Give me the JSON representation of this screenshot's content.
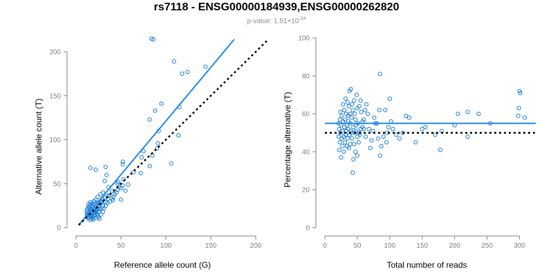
{
  "title": "rs7118 - ENSG00000184939,ENSG00000262820",
  "subtitle_prefix": "p-value: 1.51×10",
  "subtitle_exp": "-24",
  "colors": {
    "points": "#1f7fd6",
    "fit": "#1e88e5",
    "reference": "#000000",
    "axis": "#7f7f7f"
  },
  "chart_data": [
    {
      "type": "scatter",
      "title": "",
      "xlabel": "Reference allele count (G)",
      "ylabel": "Alternative allele count (T)",
      "xlim": [
        0,
        200
      ],
      "ylim": [
        0,
        200
      ],
      "xticks": [
        0,
        50,
        100,
        150,
        200
      ],
      "yticks": [
        0,
        50,
        100,
        150,
        200
      ],
      "fit_line": {
        "x": [
          3,
          176
        ],
        "y": [
          3,
          214
        ]
      },
      "reference_line": {
        "x": [
          3,
          213
        ],
        "y": [
          3,
          213
        ]
      },
      "points": [
        [
          86,
          214
        ],
        [
          84,
          215
        ],
        [
          109,
          189
        ],
        [
          118,
          175
        ],
        [
          124,
          177
        ],
        [
          144,
          183
        ],
        [
          88,
          133
        ],
        [
          95,
          141
        ],
        [
          82,
          123
        ],
        [
          115,
          137
        ],
        [
          114,
          105
        ],
        [
          92,
          110
        ],
        [
          106,
          73
        ],
        [
          91,
          96
        ],
        [
          90,
          90
        ],
        [
          85,
          82
        ],
        [
          75,
          87
        ],
        [
          73,
          80
        ],
        [
          82,
          70
        ],
        [
          72,
          62
        ],
        [
          64,
          63
        ],
        [
          52,
          72
        ],
        [
          52,
          75
        ],
        [
          47,
          52
        ],
        [
          52,
          48
        ],
        [
          48,
          46
        ],
        [
          46,
          50
        ],
        [
          50,
          45
        ],
        [
          50,
          32
        ],
        [
          43,
          38
        ],
        [
          40,
          42
        ],
        [
          36,
          46
        ],
        [
          32,
          53
        ],
        [
          34,
          60
        ],
        [
          33,
          69
        ],
        [
          16,
          68
        ],
        [
          22,
          66
        ],
        [
          30,
          40
        ],
        [
          27,
          38
        ],
        [
          24,
          35
        ],
        [
          22,
          32
        ],
        [
          20,
          30
        ],
        [
          18,
          28
        ],
        [
          16,
          26
        ],
        [
          14,
          24
        ],
        [
          13,
          22
        ],
        [
          12,
          20
        ],
        [
          12,
          18
        ],
        [
          14,
          17
        ],
        [
          15,
          16
        ],
        [
          16,
          14
        ],
        [
          17,
          13
        ],
        [
          18,
          12
        ],
        [
          19,
          11
        ],
        [
          20,
          13
        ],
        [
          21,
          15
        ],
        [
          22,
          18
        ],
        [
          23,
          20
        ],
        [
          24,
          22
        ],
        [
          25,
          24
        ],
        [
          26,
          25
        ],
        [
          27,
          27
        ],
        [
          28,
          29
        ],
        [
          29,
          30
        ],
        [
          30,
          32
        ],
        [
          32,
          34
        ],
        [
          35,
          36
        ],
        [
          37,
          37
        ],
        [
          14,
          12
        ],
        [
          13,
          14
        ],
        [
          15,
          19
        ],
        [
          17,
          21
        ],
        [
          18,
          23
        ],
        [
          19,
          25
        ],
        [
          20,
          20
        ],
        [
          21,
          22
        ],
        [
          17,
          17
        ],
        [
          16,
          20
        ],
        [
          19,
          18
        ],
        [
          21,
          19
        ],
        [
          23,
          16
        ],
        [
          24,
          14
        ],
        [
          22,
          11
        ],
        [
          25,
          12
        ],
        [
          26,
          10
        ],
        [
          28,
          15
        ],
        [
          30,
          18
        ],
        [
          31,
          22
        ],
        [
          33,
          25
        ],
        [
          35,
          28
        ],
        [
          38,
          30
        ],
        [
          40,
          33
        ],
        [
          42,
          35
        ],
        [
          45,
          40
        ],
        [
          27,
          30
        ],
        [
          23,
          25
        ],
        [
          18,
          15
        ],
        [
          15,
          22
        ],
        [
          14,
          27
        ],
        [
          16,
          29
        ],
        [
          20,
          27
        ],
        [
          22,
          24
        ],
        [
          24,
          28
        ],
        [
          26,
          21
        ],
        [
          12,
          15
        ],
        [
          13,
          11
        ],
        [
          15,
          9
        ],
        [
          17,
          10
        ],
        [
          19,
          9
        ],
        [
          21,
          17
        ],
        [
          25,
          18
        ],
        [
          28,
          22
        ],
        [
          30,
          25
        ],
        [
          33,
          29
        ],
        [
          36,
          33
        ],
        [
          41,
          31
        ],
        [
          46,
          43
        ],
        [
          53,
          55
        ],
        [
          58,
          49
        ],
        [
          55,
          42
        ]
      ]
    },
    {
      "type": "scatter",
      "title": "",
      "xlabel": "Total number of reads",
      "ylabel": "Percentage alternative (T)",
      "xlim": [
        0,
        325
      ],
      "ylim": [
        0,
        100
      ],
      "xticks": [
        0,
        50,
        100,
        150,
        200,
        250,
        300
      ],
      "yticks": [
        0,
        20,
        40,
        60,
        80,
        100
      ],
      "fit_line": {
        "x": [
          0,
          325
        ],
        "y": [
          55,
          55
        ]
      },
      "reference_line": {
        "x": [
          0,
          325
        ],
        "y": [
          50,
          50
        ]
      },
      "points": [
        [
          300,
          72
        ],
        [
          301,
          71
        ],
        [
          299,
          63
        ],
        [
          298,
          59
        ],
        [
          308,
          58
        ],
        [
          220,
          61
        ],
        [
          237,
          60
        ],
        [
          205,
          60
        ],
        [
          255,
          55
        ],
        [
          220,
          48
        ],
        [
          200,
          54
        ],
        [
          180,
          51
        ],
        [
          178,
          41
        ],
        [
          170,
          49
        ],
        [
          155,
          53
        ],
        [
          150,
          52
        ],
        [
          140,
          45
        ],
        [
          130,
          58
        ],
        [
          125,
          59
        ],
        [
          120,
          50
        ],
        [
          115,
          47
        ],
        [
          110,
          49
        ],
        [
          105,
          52
        ],
        [
          102,
          56
        ],
        [
          100,
          68
        ],
        [
          98,
          53
        ],
        [
          96,
          50
        ],
        [
          95,
          45
        ],
        [
          93,
          62
        ],
        [
          90,
          48
        ],
        [
          87,
          43
        ],
        [
          85,
          38
        ],
        [
          85,
          81
        ],
        [
          84,
          62
        ],
        [
          82,
          47
        ],
        [
          80,
          55
        ],
        [
          78,
          55
        ],
        [
          76,
          58
        ],
        [
          74,
          51
        ],
        [
          72,
          46
        ],
        [
          70,
          42
        ],
        [
          68,
          52
        ],
        [
          66,
          60
        ],
        [
          64,
          65
        ],
        [
          63,
          48
        ],
        [
          62,
          62
        ],
        [
          60,
          57
        ],
        [
          58,
          53
        ],
        [
          56,
          61
        ],
        [
          55,
          52
        ],
        [
          54,
          49
        ],
        [
          53,
          50
        ],
        [
          52,
          45
        ],
        [
          51,
          55
        ],
        [
          50,
          48
        ],
        [
          50,
          63
        ],
        [
          49,
          70
        ],
        [
          48,
          51
        ],
        [
          47,
          57
        ],
        [
          46,
          50
        ],
        [
          45,
          44
        ],
        [
          45,
          67
        ],
        [
          44,
          53
        ],
        [
          43,
          62
        ],
        [
          42,
          47
        ],
        [
          41,
          58
        ],
        [
          40,
          73
        ],
        [
          40,
          51
        ],
        [
          39,
          44
        ],
        [
          39,
          55
        ],
        [
          38,
          72
        ],
        [
          38,
          49
        ],
        [
          37,
          64
        ],
        [
          37,
          42
        ],
        [
          36,
          59
        ],
        [
          36,
          52
        ],
        [
          35,
          47
        ],
        [
          35,
          66
        ],
        [
          34,
          54
        ],
        [
          34,
          43
        ],
        [
          33,
          60
        ],
        [
          33,
          51
        ],
        [
          32,
          49
        ],
        [
          32,
          68
        ],
        [
          31,
          57
        ],
        [
          31,
          45
        ],
        [
          30,
          53
        ],
        [
          30,
          62
        ],
        [
          29,
          48
        ],
        [
          29,
          40
        ],
        [
          28,
          56
        ],
        [
          28,
          65
        ],
        [
          27,
          51
        ],
        [
          27,
          43
        ],
        [
          26,
          59
        ],
        [
          26,
          47
        ],
        [
          25,
          54
        ],
        [
          25,
          37
        ],
        [
          24,
          61
        ],
        [
          24,
          50
        ],
        [
          23,
          45
        ],
        [
          23,
          57
        ],
        [
          22,
          52
        ],
        [
          22,
          41
        ],
        [
          21,
          55
        ],
        [
          21,
          48
        ],
        [
          43,
          29
        ],
        [
          44,
          36
        ],
        [
          47,
          40
        ],
        [
          50,
          38
        ],
        [
          53,
          64
        ],
        [
          55,
          67
        ],
        [
          58,
          56
        ],
        [
          60,
          52
        ],
        [
          48,
          54
        ],
        [
          46,
          60
        ],
        [
          42,
          65
        ],
        [
          41,
          50
        ],
        [
          39,
          60
        ],
        [
          36,
          56
        ]
      ]
    }
  ]
}
